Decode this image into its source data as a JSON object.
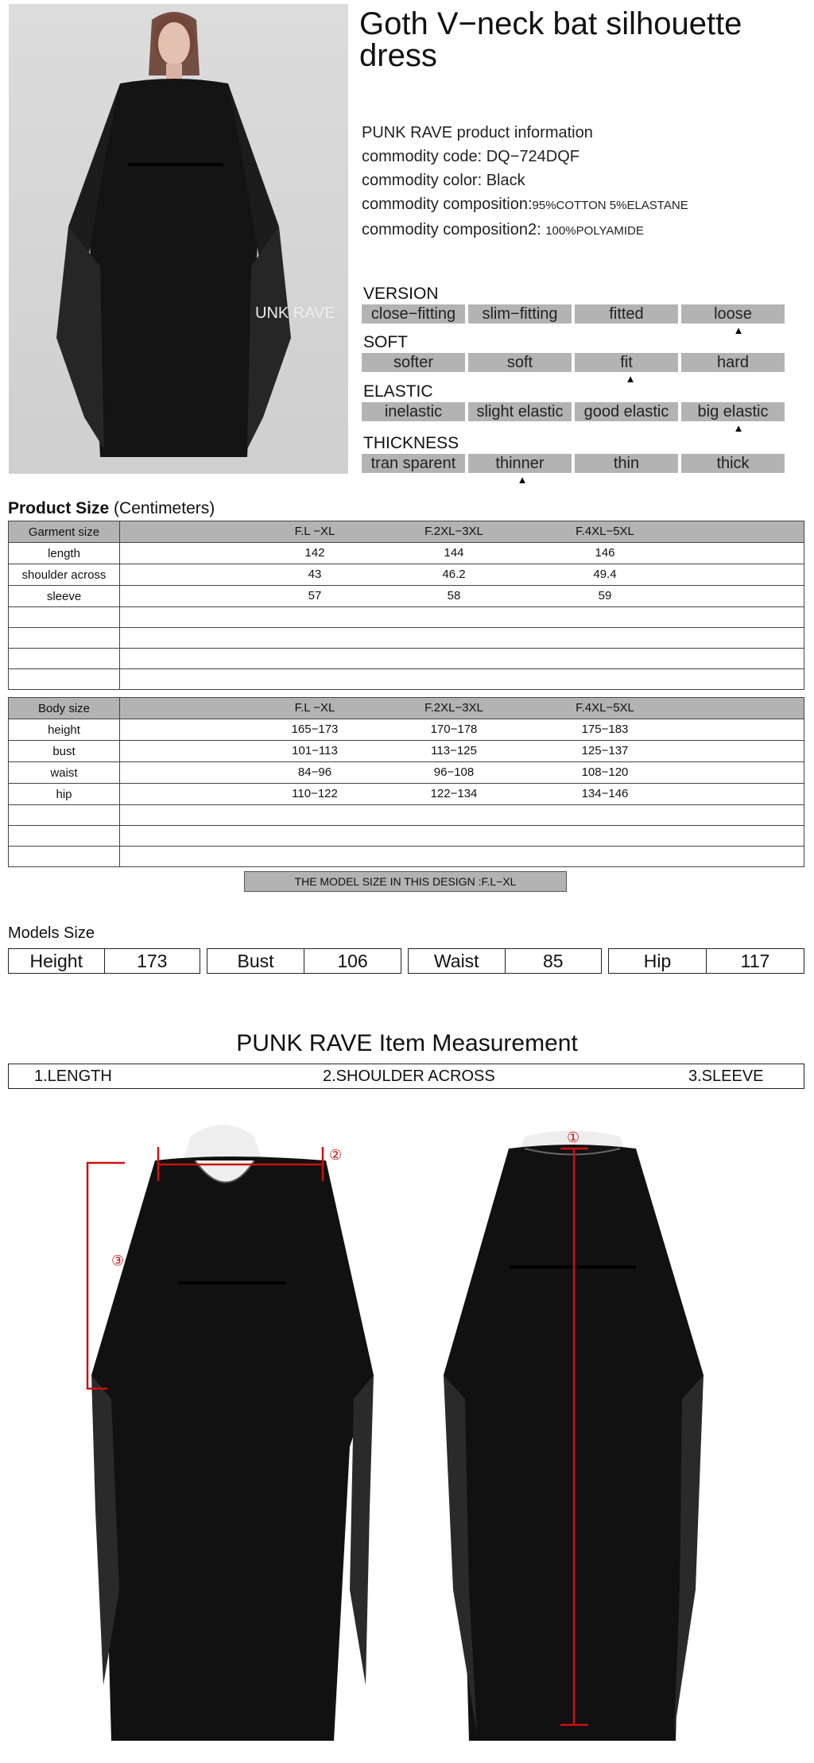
{
  "product": {
    "title": "Goth V−neck bat silhouette dress",
    "watermark": "UNK RAVE",
    "info_heading": "PUNK RAVE product information",
    "code_label": "commodity code:",
    "code": "DQ−724DQF",
    "color_label": "commodity color:",
    "color": "Black",
    "composition_label": "commodity composition:",
    "composition": "95%COTTON 5%ELASTANE",
    "composition2_label": "commodity composition2:",
    "composition2": "100%POLYAMIDE"
  },
  "attributes": [
    {
      "label": "VERSION",
      "options": [
        "close−fitting",
        "slim−fitting",
        "fitted",
        "loose"
      ],
      "selected": 3
    },
    {
      "label": "SOFT",
      "options": [
        "softer",
        "soft",
        "fit",
        "hard"
      ],
      "selected": 2
    },
    {
      "label": "ELASTIC",
      "options": [
        "inelastic",
        "slight elastic",
        "good elastic",
        "big elastic"
      ],
      "selected": 3
    },
    {
      "label": "THICKNESS",
      "options": [
        "tran sparent",
        "thinner",
        "thin",
        "thick"
      ],
      "selected": 1
    }
  ],
  "product_size": {
    "title": "Product Size",
    "unit": "(Centimeters)",
    "garment": {
      "header": [
        "Garment size",
        "F.L −XL",
        "F.2XL−3XL",
        "F.4XL−5XL"
      ],
      "rows": [
        [
          "length",
          "142",
          "144",
          "146"
        ],
        [
          "shoulder across",
          "43",
          "46.2",
          "49.4"
        ],
        [
          "sleeve",
          "57",
          "58",
          "59"
        ]
      ],
      "empty_rows": 4
    },
    "body": {
      "header": [
        "Body size",
        "F.L −XL",
        "F.2XL−3XL",
        "F.4XL−5XL"
      ],
      "rows": [
        [
          "height",
          "165−173",
          "170−178",
          "175−183"
        ],
        [
          "bust",
          "101−113",
          "113−125",
          "125−137"
        ],
        [
          "waist",
          "84−96",
          "96−108",
          "108−120"
        ],
        [
          "hip",
          "110−122",
          "122−134",
          "134−146"
        ]
      ],
      "empty_rows": 3
    }
  },
  "model_size_note": "THE MODEL SIZE IN THIS DESIGN :F.L−XL",
  "models": {
    "title": "Models Size",
    "items": [
      {
        "label": "Height",
        "value": "173"
      },
      {
        "label": "Bust",
        "value": "106"
      },
      {
        "label": "Waist",
        "value": "85"
      },
      {
        "label": "Hip",
        "value": "117"
      }
    ]
  },
  "measurement": {
    "title": "PUNK RAVE Item  Measurement",
    "items": [
      "1.LENGTH",
      "2.SHOULDER ACROSS",
      "3.SLEEVE"
    ],
    "markers": [
      "①",
      "②",
      "③"
    ]
  },
  "colors": {
    "bar": "#b3b3b3",
    "dress": "#111111",
    "measure": "#cc1111"
  }
}
